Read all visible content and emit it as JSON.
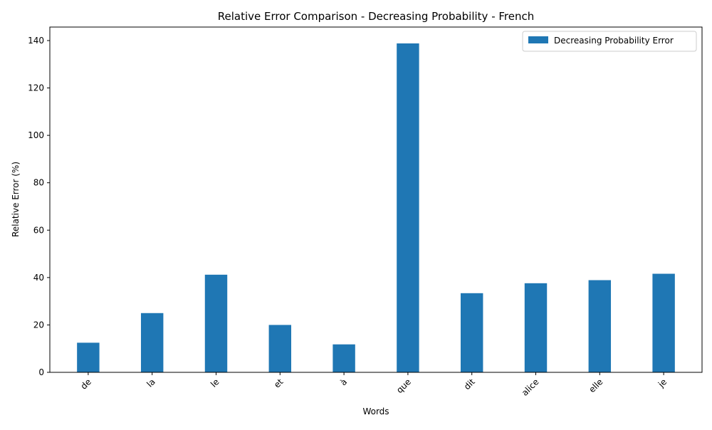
{
  "chart_data": {
    "type": "bar",
    "title": "Relative Error Comparison - Decreasing Probability - French",
    "xlabel": "Words",
    "ylabel": "Relative Error (%)",
    "categories": [
      "de",
      "la",
      "le",
      "et",
      "à",
      "que",
      "dit",
      "alice",
      "elle",
      "je"
    ],
    "series": [
      {
        "name": "Decreasing Probability Error",
        "color": "#1f77b4",
        "values": [
          12.5,
          25.0,
          41.2,
          20.0,
          11.8,
          138.8,
          33.4,
          37.6,
          38.9,
          41.6
        ]
      }
    ],
    "yticks": [
      0,
      20,
      40,
      60,
      80,
      100,
      120,
      140
    ],
    "ylim": [
      0,
      145.7
    ],
    "grid": false,
    "legend_position": "top-right"
  }
}
